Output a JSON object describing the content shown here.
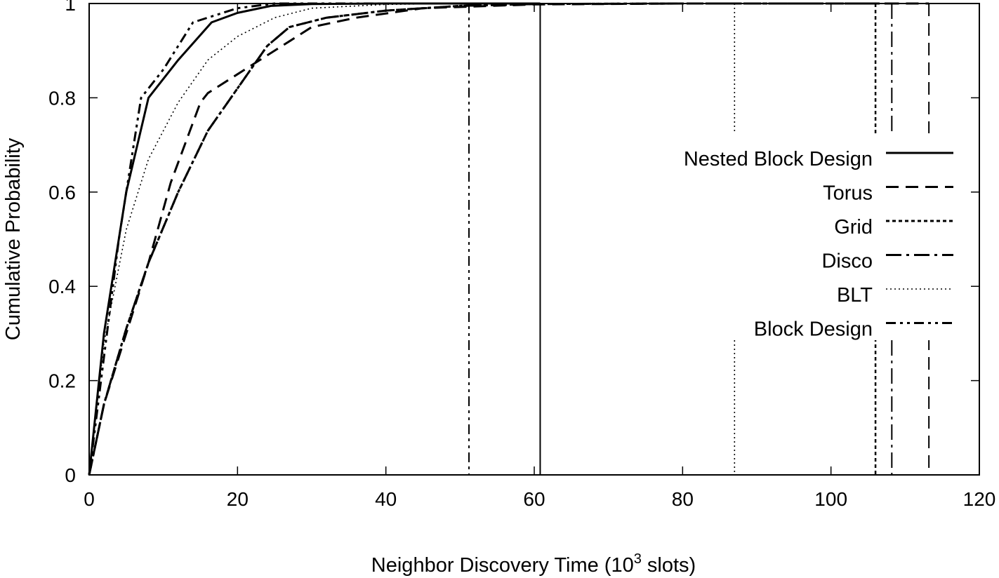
{
  "chart_data": {
    "type": "line",
    "xlabel_main": "Neighbor Discovery Time (10",
    "xlabel_sup": "3",
    "xlabel_tail": " slots)",
    "ylabel": "Cumulative Probability",
    "xlim": [
      0,
      120
    ],
    "ylim": [
      0,
      1
    ],
    "x_ticks": [
      0,
      20,
      40,
      60,
      80,
      100,
      120
    ],
    "y_ticks": [
      0,
      0.2,
      0.4,
      0.6,
      0.8,
      1
    ],
    "x_tick_labels": [
      "0",
      "20",
      "40",
      "60",
      "80",
      "100",
      "120"
    ],
    "y_tick_labels": [
      "0",
      "0.2",
      "0.4",
      "0.6",
      "0.8",
      "1"
    ],
    "grid": false,
    "legend_position": "right",
    "series": [
      {
        "name": "Nested Block Design",
        "style": "solid",
        "x": [
          0,
          2,
          5,
          8,
          12,
          16.5,
          20,
          24.5,
          30,
          40,
          50,
          60.8
        ],
        "y": [
          0,
          0.3,
          0.6,
          0.8,
          0.88,
          0.96,
          0.98,
          0.995,
          0.999,
          1,
          1,
          1
        ],
        "max_x": 60.8
      },
      {
        "name": "Torus",
        "style": "dashed",
        "x": [
          0,
          2,
          5,
          8,
          11,
          15,
          16,
          20,
          24,
          27,
          30,
          36,
          45,
          60,
          80,
          113.2
        ],
        "y": [
          0,
          0.15,
          0.3,
          0.45,
          0.62,
          0.79,
          0.81,
          0.85,
          0.89,
          0.92,
          0.95,
          0.97,
          0.99,
          0.998,
          1,
          1
        ],
        "max_x": 113.2
      },
      {
        "name": "Grid",
        "style": "dotted-heavy",
        "x": [
          0,
          2,
          5,
          8,
          12,
          16,
          20,
          24,
          27,
          32,
          40,
          50,
          60,
          80,
          106
        ],
        "y": [
          0,
          0.15,
          0.31,
          0.45,
          0.6,
          0.73,
          0.82,
          0.91,
          0.95,
          0.97,
          0.985,
          0.995,
          0.999,
          1,
          1
        ],
        "max_x": 106
      },
      {
        "name": "Disco",
        "style": "dash-dot",
        "x": [
          0,
          2,
          5,
          8,
          12,
          16,
          20,
          24,
          27,
          32,
          40,
          50,
          60,
          80,
          108.2
        ],
        "y": [
          0,
          0.15,
          0.31,
          0.45,
          0.6,
          0.73,
          0.82,
          0.91,
          0.95,
          0.97,
          0.985,
          0.995,
          0.999,
          1,
          1
        ],
        "max_x": 108.2
      },
      {
        "name": "BLT",
        "style": "dotted-light",
        "x": [
          0,
          2,
          5,
          8,
          12,
          16,
          20,
          25,
          30,
          40,
          50,
          60,
          87
        ],
        "y": [
          0,
          0.28,
          0.52,
          0.67,
          0.79,
          0.88,
          0.93,
          0.97,
          0.99,
          0.998,
          1,
          1,
          1
        ],
        "max_x": 87
      },
      {
        "name": "Block Design",
        "style": "dash-dot-dot",
        "x": [
          0,
          2,
          4,
          7,
          10,
          14,
          20,
          25,
          30,
          40,
          51.2
        ],
        "y": [
          0,
          0.25,
          0.5,
          0.8,
          0.86,
          0.96,
          0.99,
          1,
          1,
          1,
          1
        ],
        "max_x": 51.2
      }
    ]
  }
}
